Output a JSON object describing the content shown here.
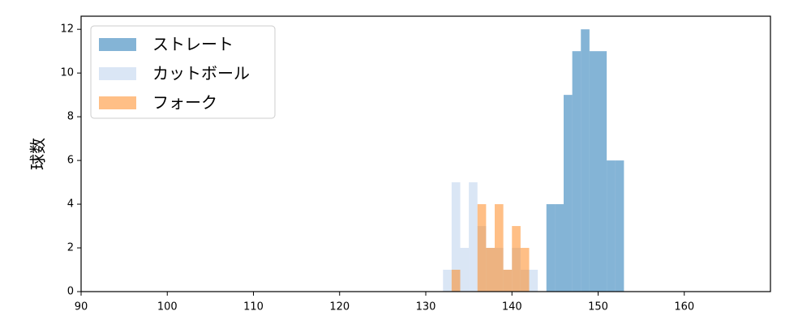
{
  "chart_data": {
    "type": "histogram",
    "y_label": "球数",
    "xlim": [
      90,
      170
    ],
    "xticks": [
      90,
      100,
      110,
      120,
      130,
      140,
      150,
      160
    ],
    "ylim": [
      0,
      12.6
    ],
    "yticks": [
      0,
      2,
      4,
      6,
      8,
      10,
      12
    ],
    "legend": "upper left",
    "series": [
      {
        "name": "ストレート",
        "color": "#1f77b4",
        "opacity": 0.55,
        "bins": [
          144,
          145,
          146,
          147,
          148,
          149,
          150,
          151,
          152,
          153
        ],
        "values": [
          4,
          4,
          9,
          11,
          12,
          11,
          11,
          6,
          6
        ]
      },
      {
        "name": "カットボール",
        "color": "#aec7e8",
        "opacity": 0.45,
        "bins": [
          132,
          133,
          134,
          135,
          136,
          137,
          138,
          139,
          140,
          141,
          142,
          143
        ],
        "values": [
          1,
          5,
          2,
          5,
          3,
          2,
          2,
          1,
          2,
          1,
          1
        ]
      },
      {
        "name": "フォーク",
        "color": "#ff7f0e",
        "opacity": 0.5,
        "bins": [
          133,
          134,
          135,
          136,
          137,
          138,
          139,
          140,
          141,
          142
        ],
        "values": [
          1,
          0,
          0,
          4,
          2,
          4,
          1,
          3,
          2
        ]
      }
    ]
  }
}
